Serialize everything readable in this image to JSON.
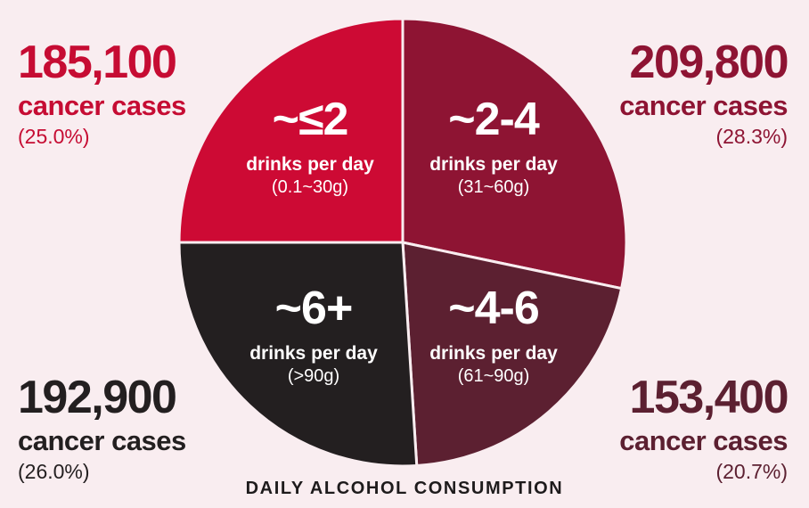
{
  "caption": "DAILY ALCOHOL CONSUMPTION",
  "colors": {
    "background": "#f9edf0",
    "divider": "#f9edf0",
    "caption_text": "#1e1b1c"
  },
  "chart_data": {
    "type": "pie",
    "title": "DAILY ALCOHOL CONSUMPTION",
    "start_angle_deg": 0,
    "clockwise": true,
    "legend_position": "in-slice labels with corner case-count annotations",
    "slices": [
      {
        "label": "~2-4",
        "sublabel": "drinks per day",
        "range": "(31~60g)",
        "cases": 209800,
        "cases_label": "209,800",
        "pct": 28.3,
        "color": "#8e1433"
      },
      {
        "label": "~4-6",
        "sublabel": "drinks per day",
        "range": "(61~90g)",
        "cases": 153400,
        "cases_label": "153,400",
        "pct": 20.7,
        "color": "#5c2031"
      },
      {
        "label": "~6+",
        "sublabel": "drinks per day",
        "range": "(>90g)",
        "cases": 192900,
        "cases_label": "192,900",
        "pct": 26.0,
        "color": "#231f20"
      },
      {
        "label": "~≤2",
        "sublabel": "drinks per day",
        "range": "(0.1~30g)",
        "cases": 185100,
        "cases_label": "185,100",
        "pct": 25.0,
        "color": "#cd0a34"
      }
    ]
  },
  "annotations": {
    "top_left": {
      "value": "185,100",
      "label": "cancer cases",
      "pct": "(25.0%)",
      "color": "#c60c33"
    },
    "top_right": {
      "value": "209,800",
      "label": "cancer cases",
      "pct": "(28.3%)",
      "color": "#8e1433"
    },
    "bottom_left": {
      "value": "192,900",
      "label": "cancer cases",
      "pct": "(26.0%)",
      "color": "#231f20"
    },
    "bottom_right": {
      "value": "153,400",
      "label": "cancer cases",
      "pct": "(20.7%)",
      "color": "#5c2031"
    }
  }
}
